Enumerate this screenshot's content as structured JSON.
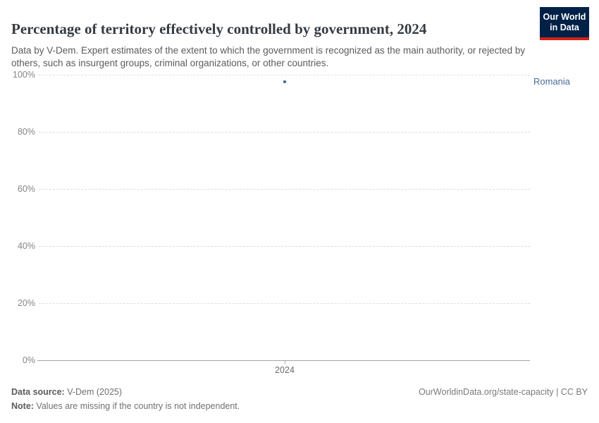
{
  "header": {
    "title": "Percentage of territory effectively controlled by government, 2024",
    "subtitle": "Data by V-Dem. Expert estimates of the extent to which the government is recognized as the main authority, or rejected by others, such as insurgent groups, criminal organizations, or other countries.",
    "logo": {
      "line1": "Our World",
      "line2": "in Data",
      "bg_color": "#002147",
      "accent_color": "#cf2319"
    }
  },
  "chart_data": {
    "type": "scatter",
    "title": "Percentage of territory effectively controlled by government, 2024",
    "x": [
      2024
    ],
    "series": [
      {
        "name": "Romania",
        "values": [
          97.5
        ],
        "color": "#4C6A9C"
      }
    ],
    "xlabel": "",
    "ylabel": "",
    "ylim": [
      0,
      100
    ],
    "y_tick_labels": [
      "0%",
      "20%",
      "40%",
      "60%",
      "80%",
      "100%"
    ],
    "x_tick_labels": [
      "2024"
    ],
    "grid": "horizontal-dashed",
    "legend_position": "entity label right of point"
  },
  "footer": {
    "datasource_label": "Data source:",
    "datasource_value": " V-Dem (2025)",
    "note_label": "Note:",
    "note_value": " Values are missing if the country is not independent.",
    "link": "OurWorldinData.org/state-capacity | CC BY"
  }
}
